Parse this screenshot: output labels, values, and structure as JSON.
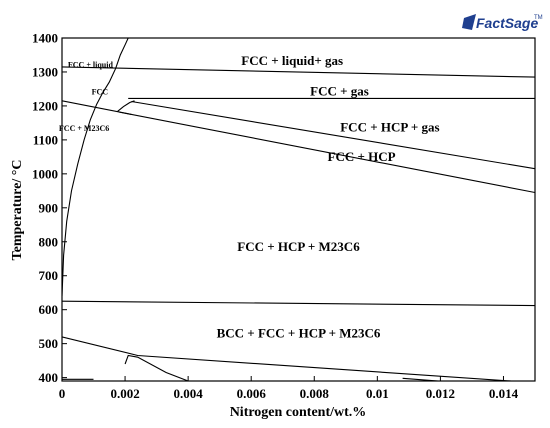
{
  "logo": {
    "text": "FactSage",
    "tm": "TM"
  },
  "chart_data": {
    "type": "line",
    "title": "",
    "xlabel": "Nitrogen content/wt.%",
    "ylabel": "Temperature/ °C",
    "xlim": [
      0,
      0.015
    ],
    "ylim": [
      390,
      1400
    ],
    "xticks": [
      0,
      0.002,
      0.004,
      0.006,
      0.008,
      0.01,
      0.012,
      0.014
    ],
    "xtick_labels": [
      "0",
      "0.002",
      "0.004",
      "0.006",
      "0.008",
      "0.01",
      "0.012",
      "0.014"
    ],
    "yticks": [
      400,
      500,
      600,
      700,
      800,
      900,
      1000,
      1100,
      1200,
      1300,
      1400
    ],
    "ytick_labels": [
      "400",
      "500",
      "600",
      "700",
      "800",
      "900",
      "1000",
      "1100",
      "1200",
      "1300",
      "1400"
    ],
    "grid": false,
    "series": [
      {
        "x": [
          0,
          0.015
        ],
        "y": [
          1315,
          1285
        ]
      },
      {
        "x": [
          0.0021,
          0.015
        ],
        "y": [
          1222,
          1222
        ]
      },
      {
        "x": [
          0,
          0.0022
        ],
        "y": [
          1215,
          1175
        ]
      },
      {
        "x": [
          0.0022,
          0.015
        ],
        "y": [
          1213,
          1015
        ]
      },
      {
        "x": [
          0.0018,
          0.015
        ],
        "y": [
          1182,
          945
        ]
      },
      {
        "x": [
          0,
          0.015
        ],
        "y": [
          625,
          612
        ]
      },
      {
        "x": [
          0.0021,
          0.002,
          0.00185,
          0.0017,
          0.0015,
          0.0013,
          0.0011,
          0.0009,
          0.0007,
          0.0005,
          0.0003,
          0.00015,
          5e-05,
          0.0
        ],
        "y": [
          1400,
          1380,
          1350,
          1310,
          1270,
          1240,
          1205,
          1160,
          1100,
          1030,
          950,
          860,
          760,
          640
        ]
      },
      {
        "x": [
          0.00175,
          0.00195,
          0.00215,
          0.0023
        ],
        "y": [
          1183,
          1198,
          1210,
          1215
        ]
      },
      {
        "x": [
          0,
          0.0024,
          0.015
        ],
        "y": [
          520,
          465,
          385
        ]
      },
      {
        "x": [
          0.002,
          0.0021,
          0.0024,
          0.0033,
          0.004
        ],
        "y": [
          440,
          465,
          460,
          415,
          390
        ]
      },
      {
        "x": [
          0,
          0.001
        ],
        "y": [
          395,
          395
        ]
      },
      {
        "x": [
          0.0108,
          0.0122
        ],
        "y": [
          398,
          388
        ]
      }
    ],
    "regions": [
      {
        "label": "FCC + liquid+ gas",
        "x": 0.0073,
        "y": 1333,
        "size": "lg"
      },
      {
        "label": "FCC + gas",
        "x": 0.0088,
        "y": 1242,
        "size": "lg"
      },
      {
        "label": "FCC + HCP + gas",
        "x": 0.0104,
        "y": 1137,
        "size": "lg"
      },
      {
        "label": "FCC + HCP",
        "x": 0.0095,
        "y": 1050,
        "size": "lg"
      },
      {
        "label": "FCC + HCP + M23C6",
        "x": 0.0075,
        "y": 785,
        "size": "lg"
      },
      {
        "label": "BCC + FCC + HCP + M23C6",
        "x": 0.0075,
        "y": 530,
        "size": "lg"
      },
      {
        "label": "FCC + liquid",
        "x": 0.0009,
        "y": 1325,
        "size": "sm"
      },
      {
        "label": "FCC",
        "x": 0.0012,
        "y": 1245,
        "size": "sm"
      },
      {
        "label": "FCC + M23C6",
        "x": 0.0007,
        "y": 1138,
        "size": "sm"
      }
    ]
  }
}
